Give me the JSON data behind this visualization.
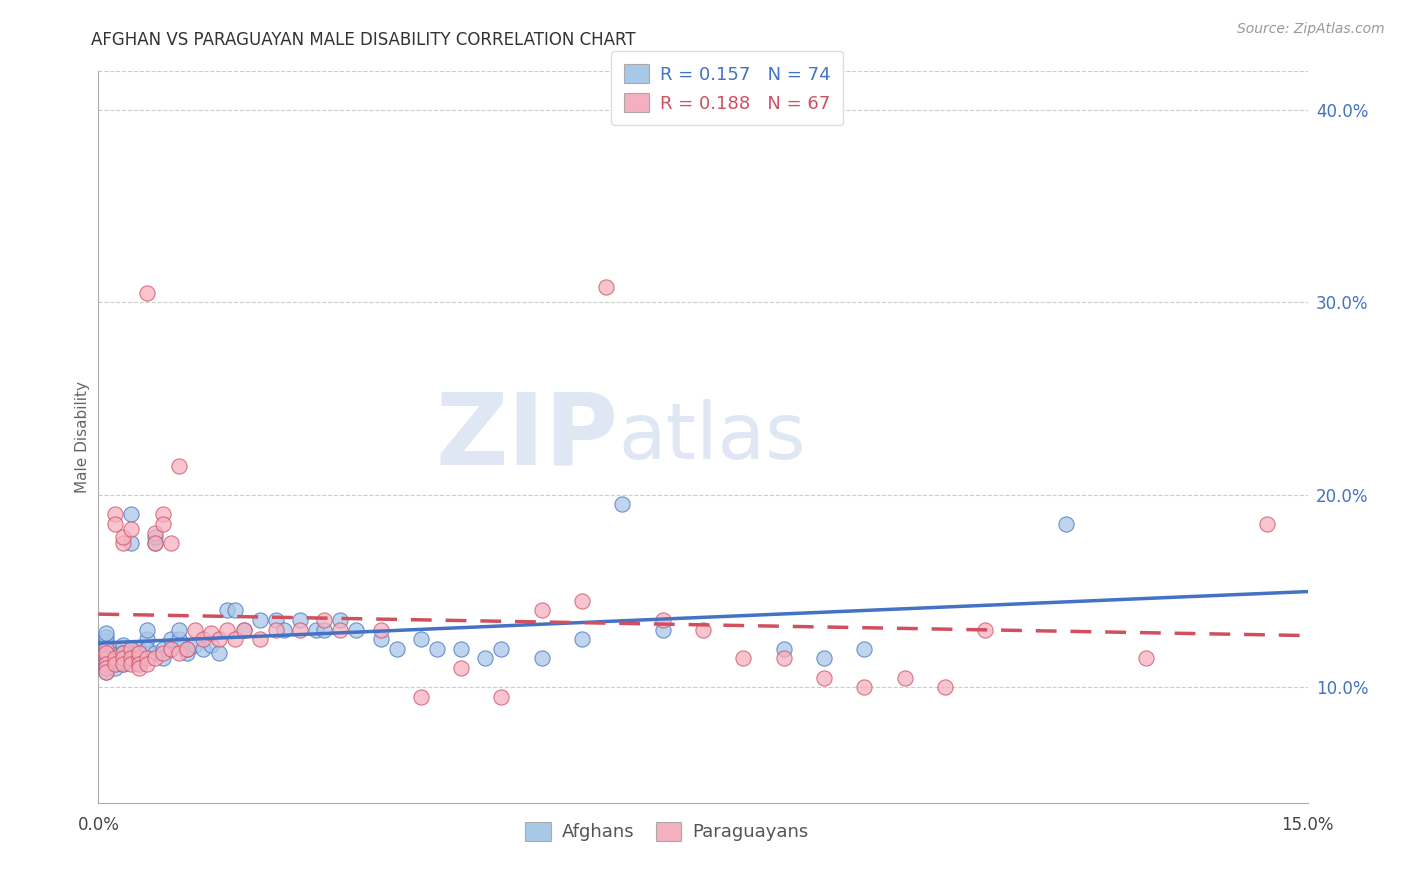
{
  "title": "AFGHAN VS PARAGUAYAN MALE DISABILITY CORRELATION CHART",
  "source": "Source: ZipAtlas.com",
  "ylabel": "Male Disability",
  "xlim": [
    0.0,
    0.15
  ],
  "ylim": [
    0.04,
    0.42
  ],
  "xticks": [
    0.0,
    0.03,
    0.06,
    0.09,
    0.12,
    0.15
  ],
  "xtick_labels": [
    "0.0%",
    "",
    "",
    "",
    "",
    "15.0%"
  ],
  "ytick_labels_right": [
    "10.0%",
    "20.0%",
    "30.0%",
    "40.0%"
  ],
  "yticks_right": [
    0.1,
    0.2,
    0.3,
    0.4
  ],
  "afghan_R": 0.157,
  "afghan_N": 74,
  "paraguayan_R": 0.188,
  "paraguayan_N": 67,
  "afghan_color": "#a8c8e8",
  "paraguayan_color": "#f5b0c0",
  "afghan_line_color": "#4472c4",
  "paraguayan_line_color": "#d05060",
  "watermark_zip": "ZIP",
  "watermark_atlas": "atlas",
  "background_color": "#ffffff",
  "afghan_x": [
    0.001,
    0.001,
    0.001,
    0.001,
    0.001,
    0.001,
    0.001,
    0.001,
    0.001,
    0.002,
    0.002,
    0.002,
    0.002,
    0.002,
    0.002,
    0.002,
    0.003,
    0.003,
    0.003,
    0.003,
    0.003,
    0.004,
    0.004,
    0.004,
    0.004,
    0.004,
    0.005,
    0.005,
    0.005,
    0.005,
    0.006,
    0.006,
    0.006,
    0.007,
    0.007,
    0.007,
    0.008,
    0.008,
    0.009,
    0.009,
    0.01,
    0.01,
    0.011,
    0.011,
    0.012,
    0.013,
    0.014,
    0.015,
    0.016,
    0.017,
    0.018,
    0.02,
    0.022,
    0.023,
    0.025,
    0.027,
    0.028,
    0.03,
    0.032,
    0.035,
    0.037,
    0.04,
    0.042,
    0.045,
    0.048,
    0.05,
    0.055,
    0.06,
    0.065,
    0.07,
    0.085,
    0.09,
    0.095,
    0.12
  ],
  "afghan_y": [
    0.115,
    0.12,
    0.122,
    0.124,
    0.126,
    0.128,
    0.112,
    0.11,
    0.108,
    0.118,
    0.12,
    0.115,
    0.112,
    0.117,
    0.114,
    0.11,
    0.122,
    0.118,
    0.115,
    0.112,
    0.113,
    0.12,
    0.118,
    0.116,
    0.175,
    0.19,
    0.118,
    0.115,
    0.112,
    0.12,
    0.125,
    0.13,
    0.12,
    0.175,
    0.178,
    0.118,
    0.12,
    0.115,
    0.12,
    0.125,
    0.125,
    0.13,
    0.118,
    0.12,
    0.122,
    0.12,
    0.122,
    0.118,
    0.14,
    0.14,
    0.13,
    0.135,
    0.135,
    0.13,
    0.135,
    0.13,
    0.13,
    0.135,
    0.13,
    0.125,
    0.12,
    0.125,
    0.12,
    0.12,
    0.115,
    0.12,
    0.115,
    0.125,
    0.195,
    0.13,
    0.12,
    0.115,
    0.12,
    0.185
  ],
  "paraguayan_x": [
    0.001,
    0.001,
    0.001,
    0.001,
    0.001,
    0.001,
    0.002,
    0.002,
    0.002,
    0.002,
    0.003,
    0.003,
    0.003,
    0.003,
    0.003,
    0.004,
    0.004,
    0.004,
    0.004,
    0.005,
    0.005,
    0.005,
    0.005,
    0.006,
    0.006,
    0.006,
    0.007,
    0.007,
    0.007,
    0.008,
    0.008,
    0.008,
    0.009,
    0.009,
    0.01,
    0.01,
    0.011,
    0.012,
    0.013,
    0.014,
    0.015,
    0.016,
    0.017,
    0.018,
    0.02,
    0.022,
    0.025,
    0.028,
    0.03,
    0.035,
    0.04,
    0.045,
    0.05,
    0.055,
    0.06,
    0.063,
    0.07,
    0.075,
    0.08,
    0.085,
    0.09,
    0.095,
    0.1,
    0.105,
    0.11,
    0.13,
    0.145
  ],
  "paraguayan_y": [
    0.12,
    0.115,
    0.118,
    0.112,
    0.11,
    0.108,
    0.19,
    0.185,
    0.115,
    0.112,
    0.175,
    0.178,
    0.118,
    0.115,
    0.112,
    0.182,
    0.12,
    0.115,
    0.112,
    0.115,
    0.118,
    0.112,
    0.11,
    0.305,
    0.115,
    0.112,
    0.18,
    0.175,
    0.115,
    0.19,
    0.185,
    0.118,
    0.175,
    0.12,
    0.215,
    0.118,
    0.12,
    0.13,
    0.125,
    0.128,
    0.125,
    0.13,
    0.125,
    0.13,
    0.125,
    0.13,
    0.13,
    0.135,
    0.13,
    0.13,
    0.095,
    0.11,
    0.095,
    0.14,
    0.145,
    0.308,
    0.135,
    0.13,
    0.115,
    0.115,
    0.105,
    0.1,
    0.105,
    0.1,
    0.13,
    0.115,
    0.185
  ]
}
